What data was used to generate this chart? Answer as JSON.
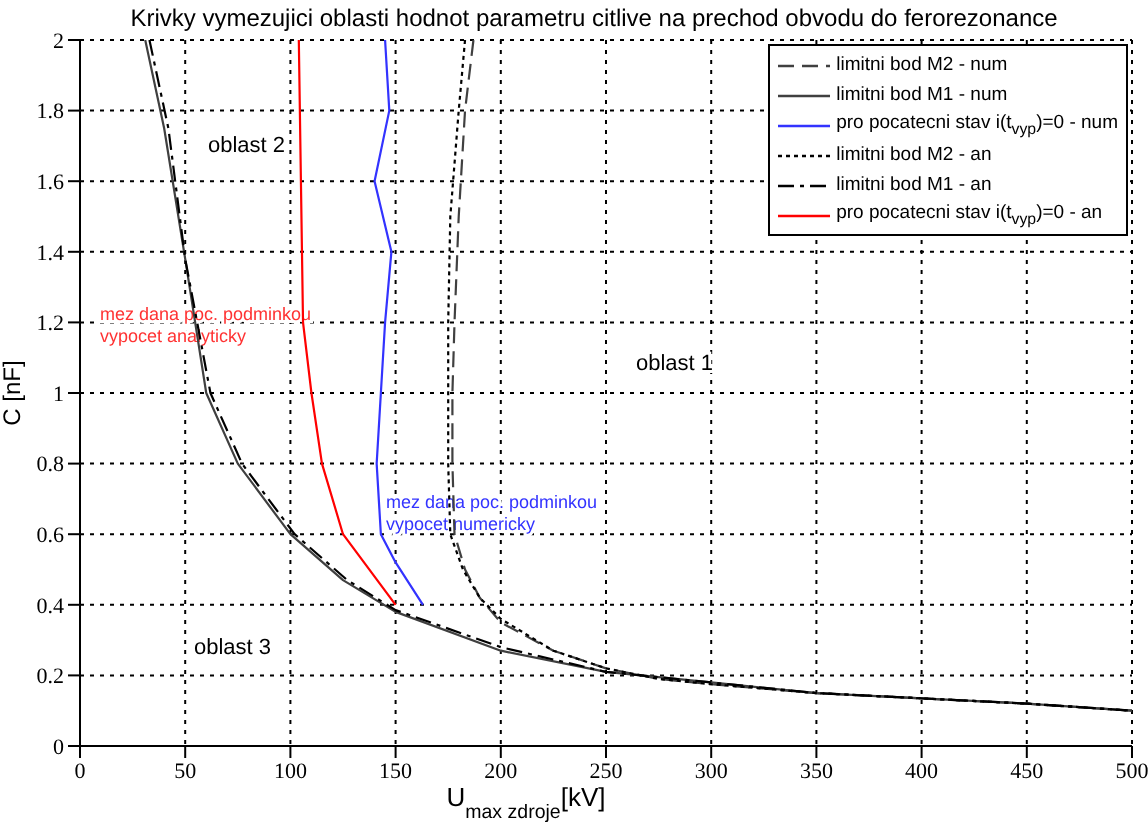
{
  "chart_data": {
    "type": "line",
    "title": "Krivky vymezujici oblasti hodnot parametru citlive na prechod obvodu do ferorezonance",
    "xlabel": "U$_{max zdroje}$[kV]",
    "ylabel": "C [nF]",
    "xlim": [
      0,
      500
    ],
    "xticks": [
      0,
      50,
      100,
      150,
      200,
      250,
      300,
      350,
      400,
      450,
      500
    ],
    "ylim": [
      0,
      2
    ],
    "yticks": [
      0,
      0.2,
      0.4,
      0.6,
      0.8,
      1,
      1.2,
      1.4,
      1.6,
      1.8,
      2
    ],
    "grid": true,
    "legend": "top right",
    "marker": "none",
    "series": [
      {
        "name": "limitni bod M2 - num",
        "color": "#404040",
        "line_style": "dashed",
        "x": [
          187,
          183,
          180,
          178,
          177,
          177,
          178,
          183,
          190,
          200,
          225,
          250,
          275,
          300,
          350,
          400,
          450,
          500
        ],
        "values": [
          2,
          1.8,
          1.5,
          1.2,
          1,
          0.8,
          0.6,
          0.5,
          0.42,
          0.35,
          0.27,
          0.22,
          0.19,
          0.175,
          0.15,
          0.135,
          0.12,
          0.1
        ]
      },
      {
        "name": "limitni bod M1 - num",
        "color": "#404040",
        "line_style": "solid",
        "x": [
          31,
          40,
          50,
          60,
          75,
          100,
          125,
          150,
          200,
          250,
          300,
          350,
          400,
          450,
          500
        ],
        "values": [
          2,
          1.75,
          1.38,
          1,
          0.8,
          0.6,
          0.47,
          0.38,
          0.27,
          0.21,
          0.18,
          0.15,
          0.135,
          0.12,
          0.1
        ]
      },
      {
        "name": "pro pocatecni stav i(t$_{vyp}$)=0 - num",
        "color": "#3333ff",
        "line_style": "solid",
        "x": [
          145,
          147,
          140,
          148,
          145,
          143,
          141,
          143,
          150,
          163
        ],
        "values": [
          2,
          1.8,
          1.6,
          1.4,
          1.2,
          1,
          0.8,
          0.6,
          0.52,
          0.4
        ]
      },
      {
        "name": "limitni bod M2 - an",
        "color": "#000000",
        "line_style": "dotted",
        "x": [
          183,
          180,
          176,
          175,
          175,
          175,
          176,
          182,
          190,
          200,
          225,
          250,
          275,
          300,
          350,
          400,
          450,
          500
        ],
        "values": [
          2,
          1.8,
          1.5,
          1.2,
          1,
          0.8,
          0.6,
          0.5,
          0.42,
          0.36,
          0.27,
          0.22,
          0.19,
          0.175,
          0.15,
          0.135,
          0.12,
          0.1
        ]
      },
      {
        "name": "limitni bod M1 - an",
        "color": "#000000",
        "line_style": "dashdot",
        "x": [
          33,
          42,
          50,
          62,
          77,
          102,
          127,
          150,
          200,
          250,
          300,
          350,
          400,
          450,
          500
        ],
        "values": [
          2,
          1.75,
          1.38,
          1,
          0.8,
          0.6,
          0.47,
          0.385,
          0.28,
          0.21,
          0.18,
          0.15,
          0.135,
          0.12,
          0.1
        ]
      },
      {
        "name": "pro pocatecni stav i(t$_{vyp}$)=0 - an",
        "color": "#ff0000",
        "line_style": "solid",
        "x": [
          104,
          105,
          106,
          110,
          115,
          125,
          150
        ],
        "values": [
          2,
          1.6,
          1.2,
          1,
          0.8,
          0.6,
          0.4
        ]
      }
    ],
    "annotations": [
      "oblast 2",
      "oblast 1",
      "oblast 3",
      "mez dana poc. podminkou\nvypocet analyticky",
      "mez dana poc. podminkou\nvypocet numericky"
    ]
  }
}
